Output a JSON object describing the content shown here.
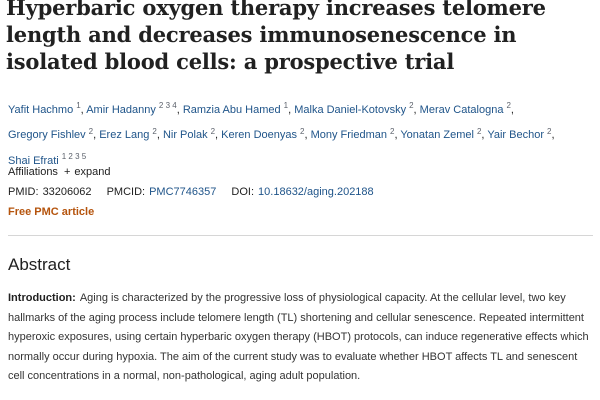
{
  "title": "Hyperbaric oxygen therapy increases telomere length and decreases immunosenescence in isolated blood cells: a prospective trial",
  "authors": [
    {
      "name": "Yafit Hachmo",
      "affil": "1"
    },
    {
      "name": "Amir Hadanny",
      "affil": "2 3 4"
    },
    {
      "name": "Ramzia Abu Hamed",
      "affil": "1"
    },
    {
      "name": "Malka Daniel-Kotovsky",
      "affil": "2"
    },
    {
      "name": "Merav Catalogna",
      "affil": "2"
    },
    {
      "name": "Gregory Fishlev",
      "affil": "2"
    },
    {
      "name": "Erez Lang",
      "affil": "2"
    },
    {
      "name": "Nir Polak",
      "affil": "2"
    },
    {
      "name": "Keren Doenyas",
      "affil": "2"
    },
    {
      "name": "Mony Friedman",
      "affil": "2"
    },
    {
      "name": "Yonatan Zemel",
      "affil": "2"
    },
    {
      "name": "Yair Bechor",
      "affil": "2"
    },
    {
      "name": "Shai Efrati",
      "affil": "1 2 3 5"
    }
  ],
  "affiliations": {
    "label": "Affiliations",
    "expand": "expand"
  },
  "ids": {
    "pmid_label": "PMID:",
    "pmid": "33206062",
    "pmcid_label": "PMCID:",
    "pmcid": "PMC7746357",
    "doi_label": "DOI:",
    "doi": "10.18632/aging.202188"
  },
  "free_pmc": "Free PMC article",
  "abstract": {
    "heading": "Abstract",
    "label": "Introduction:",
    "text": "Aging is characterized by the progressive loss of physiological capacity. At the cellular level, two key hallmarks of the aging process include telomere length (TL) shortening and cellular senescence. Repeated intermittent hyperoxic exposures, using certain hyperbaric oxygen therapy (HBOT) protocols, can induce regenerative effects which normally occur during hypoxia. The aim of the current study was to evaluate whether HBOT affects TL and senescent cell concentrations in a normal, non-pathological, aging adult population."
  }
}
